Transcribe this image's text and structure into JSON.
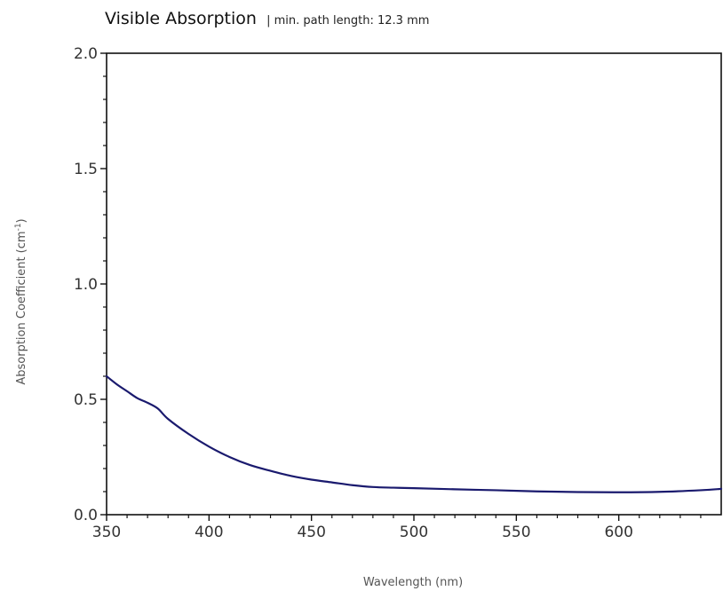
{
  "chart_data": {
    "type": "line",
    "title": "Visible Absorption",
    "subtitle": "| min. path length: 12.3 mm",
    "xlabel": "Wavelength (nm)",
    "ylabel": {
      "base": "Absorption Coefficient (cm",
      "sup": "-1",
      "tail": ")"
    },
    "xlim": [
      350,
      650
    ],
    "ylim": [
      0.0,
      2.0
    ],
    "x_ticks": [
      350,
      400,
      450,
      500,
      550,
      600
    ],
    "x_tick_labels": [
      "350",
      "400",
      "450",
      "500",
      "550",
      "600"
    ],
    "y_ticks": [
      0.0,
      0.5,
      1.0,
      1.5,
      2.0
    ],
    "y_tick_labels": [
      "0.0",
      "0.5",
      "1.0",
      "1.5",
      "2.0"
    ],
    "grid": false,
    "line_color": "#1a1a6e",
    "series": [
      {
        "x": [
          350,
          355,
          360,
          365,
          370,
          375,
          380,
          390,
          400,
          410,
          420,
          430,
          440,
          450,
          460,
          470,
          480,
          490,
          500,
          520,
          540,
          560,
          580,
          600,
          620,
          640,
          650
        ],
        "y": [
          0.6,
          0.565,
          0.535,
          0.505,
          0.485,
          0.46,
          0.415,
          0.35,
          0.295,
          0.25,
          0.215,
          0.19,
          0.168,
          0.152,
          0.14,
          0.128,
          0.12,
          0.117,
          0.115,
          0.11,
          0.106,
          0.101,
          0.098,
          0.097,
          0.099,
          0.106,
          0.112
        ]
      }
    ]
  }
}
